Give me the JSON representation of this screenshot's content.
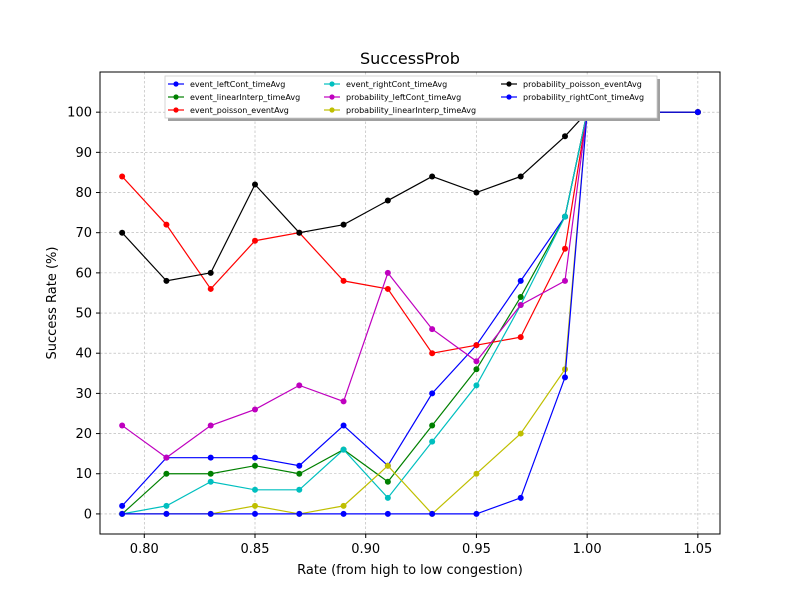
{
  "chart_data": {
    "type": "line",
    "title": "SuccessProb",
    "xlabel": "Rate (from high to low congestion)",
    "ylabel": "Success Rate (%)",
    "xlim": [
      0.78,
      1.06
    ],
    "ylim": [
      -5,
      110
    ],
    "xticks": [
      0.8,
      0.85,
      0.9,
      0.95,
      1.0,
      1.05
    ],
    "xtick_labels": [
      "0.80",
      "0.85",
      "0.90",
      "0.95",
      "1.00",
      "1.05"
    ],
    "yticks": [
      0,
      10,
      20,
      30,
      40,
      50,
      60,
      70,
      80,
      90,
      100
    ],
    "ytick_labels": [
      "0",
      "10",
      "20",
      "30",
      "40",
      "50",
      "60",
      "70",
      "80",
      "90",
      "100"
    ],
    "grid": true,
    "legend_position": "top-center",
    "series": [
      {
        "name": "event_leftCont_timeAvg",
        "color": "#0000ff",
        "x": [
          0.79,
          0.81,
          0.83,
          0.85,
          0.87,
          0.89,
          0.91,
          0.93,
          0.95,
          0.97,
          0.99,
          1.0,
          1.05
        ],
        "y": [
          2,
          14,
          14,
          14,
          12,
          22,
          12,
          30,
          42,
          58,
          74,
          100,
          100
        ]
      },
      {
        "name": "event_linearInterp_timeAvg",
        "color": "#008000",
        "x": [
          0.79,
          0.81,
          0.83,
          0.85,
          0.87,
          0.89,
          0.91,
          0.93,
          0.95,
          0.97,
          0.99,
          1.0,
          1.05
        ],
        "y": [
          0,
          10,
          10,
          12,
          10,
          16,
          8,
          22,
          36,
          54,
          74,
          100,
          100
        ]
      },
      {
        "name": "event_poisson_eventAvg",
        "color": "#ff0000",
        "x": [
          0.79,
          0.81,
          0.83,
          0.85,
          0.87,
          0.89,
          0.91,
          0.93,
          0.95,
          0.97,
          0.99,
          1.0,
          1.05
        ],
        "y": [
          84,
          72,
          56,
          68,
          70,
          58,
          56,
          40,
          42,
          44,
          66,
          100,
          100
        ]
      },
      {
        "name": "event_rightCont_timeAvg",
        "color": "#00bfbf",
        "x": [
          0.79,
          0.81,
          0.83,
          0.85,
          0.87,
          0.89,
          0.91,
          0.93,
          0.95,
          0.97,
          0.99,
          1.0,
          1.05
        ],
        "y": [
          0,
          2,
          8,
          6,
          6,
          16,
          4,
          18,
          32,
          52,
          74,
          100,
          100
        ]
      },
      {
        "name": "probability_leftCont_timeAvg",
        "color": "#bf00bf",
        "x": [
          0.79,
          0.81,
          0.83,
          0.85,
          0.87,
          0.89,
          0.91,
          0.93,
          0.95,
          0.97,
          0.99,
          1.0,
          1.05
        ],
        "y": [
          22,
          14,
          22,
          26,
          32,
          28,
          60,
          46,
          38,
          52,
          58,
          100,
          100
        ]
      },
      {
        "name": "probability_linearInterp_timeAvg",
        "color": "#bfbf00",
        "x": [
          0.79,
          0.81,
          0.83,
          0.85,
          0.87,
          0.89,
          0.91,
          0.93,
          0.95,
          0.97,
          0.99,
          1.0,
          1.05
        ],
        "y": [
          0,
          0,
          0,
          2,
          0,
          2,
          12,
          0,
          10,
          20,
          36,
          100,
          100
        ]
      },
      {
        "name": "probability_poisson_eventAvg",
        "color": "#000000",
        "x": [
          0.79,
          0.81,
          0.83,
          0.85,
          0.87,
          0.89,
          0.91,
          0.93,
          0.95,
          0.97,
          0.99,
          1.0,
          1.05
        ],
        "y": [
          70,
          58,
          60,
          82,
          70,
          72,
          78,
          84,
          80,
          84,
          94,
          100,
          100
        ]
      },
      {
        "name": "probability_rightCont_timeAvg",
        "color": "#0000ff",
        "x": [
          0.79,
          0.81,
          0.83,
          0.85,
          0.87,
          0.89,
          0.91,
          0.93,
          0.95,
          0.97,
          0.99,
          1.0,
          1.05
        ],
        "y": [
          0,
          0,
          0,
          0,
          0,
          0,
          0,
          0,
          0,
          4,
          34,
          100,
          100
        ]
      }
    ]
  }
}
